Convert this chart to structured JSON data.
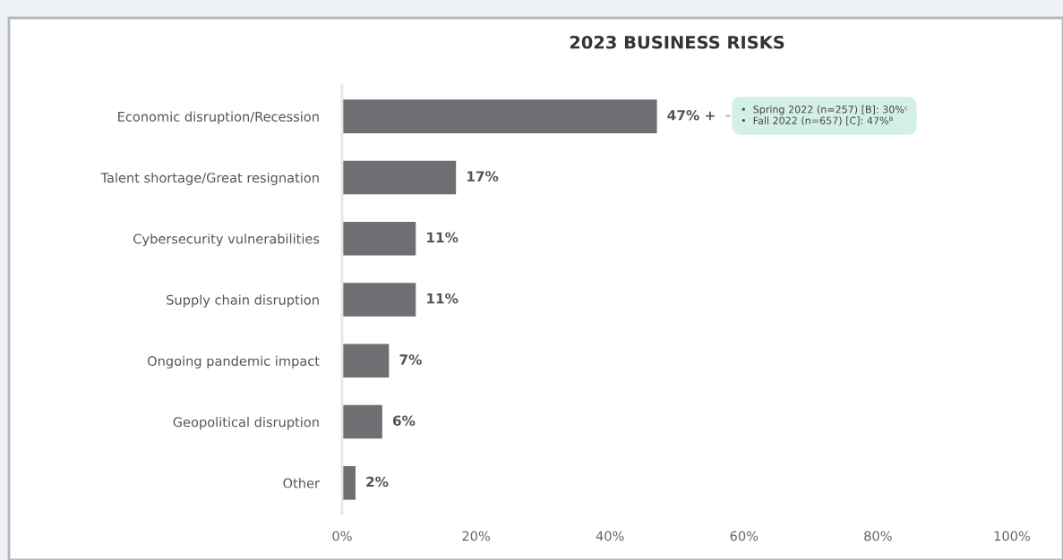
{
  "chart_data": {
    "type": "bar",
    "orientation": "horizontal",
    "title": "2023 BUSINESS RISKS",
    "categories": [
      "Economic disruption/Recession",
      "Talent shortage/Great resignation",
      "Cybersecurity vulnerabilities",
      "Supply chain disruption",
      "Ongoing pandemic impact",
      "Geopolitical disruption",
      "Other"
    ],
    "values": [
      47,
      17,
      11,
      11,
      7,
      6,
      2
    ],
    "color": "#6e6f72",
    "value_labels": [
      "47% +",
      "17%",
      "11%",
      "11%",
      "7%",
      "6%",
      "2%"
    ],
    "xlim": [
      0,
      100
    ],
    "xticks": [
      {
        "value": 0,
        "label": "0%"
      },
      {
        "value": 20,
        "label": "20%"
      },
      {
        "value": 40,
        "label": "40%"
      },
      {
        "value": 60,
        "label": "60%"
      },
      {
        "value": 80,
        "label": "80%"
      },
      {
        "value": 100,
        "label": "100%"
      }
    ],
    "grid": false,
    "legend": false,
    "annotations": [
      "•  Spring 2022 (n=257) [B]: 30%ᶜ\n•  Fall 2022 (n=657) [C]: 47%ᴮ"
    ]
  }
}
